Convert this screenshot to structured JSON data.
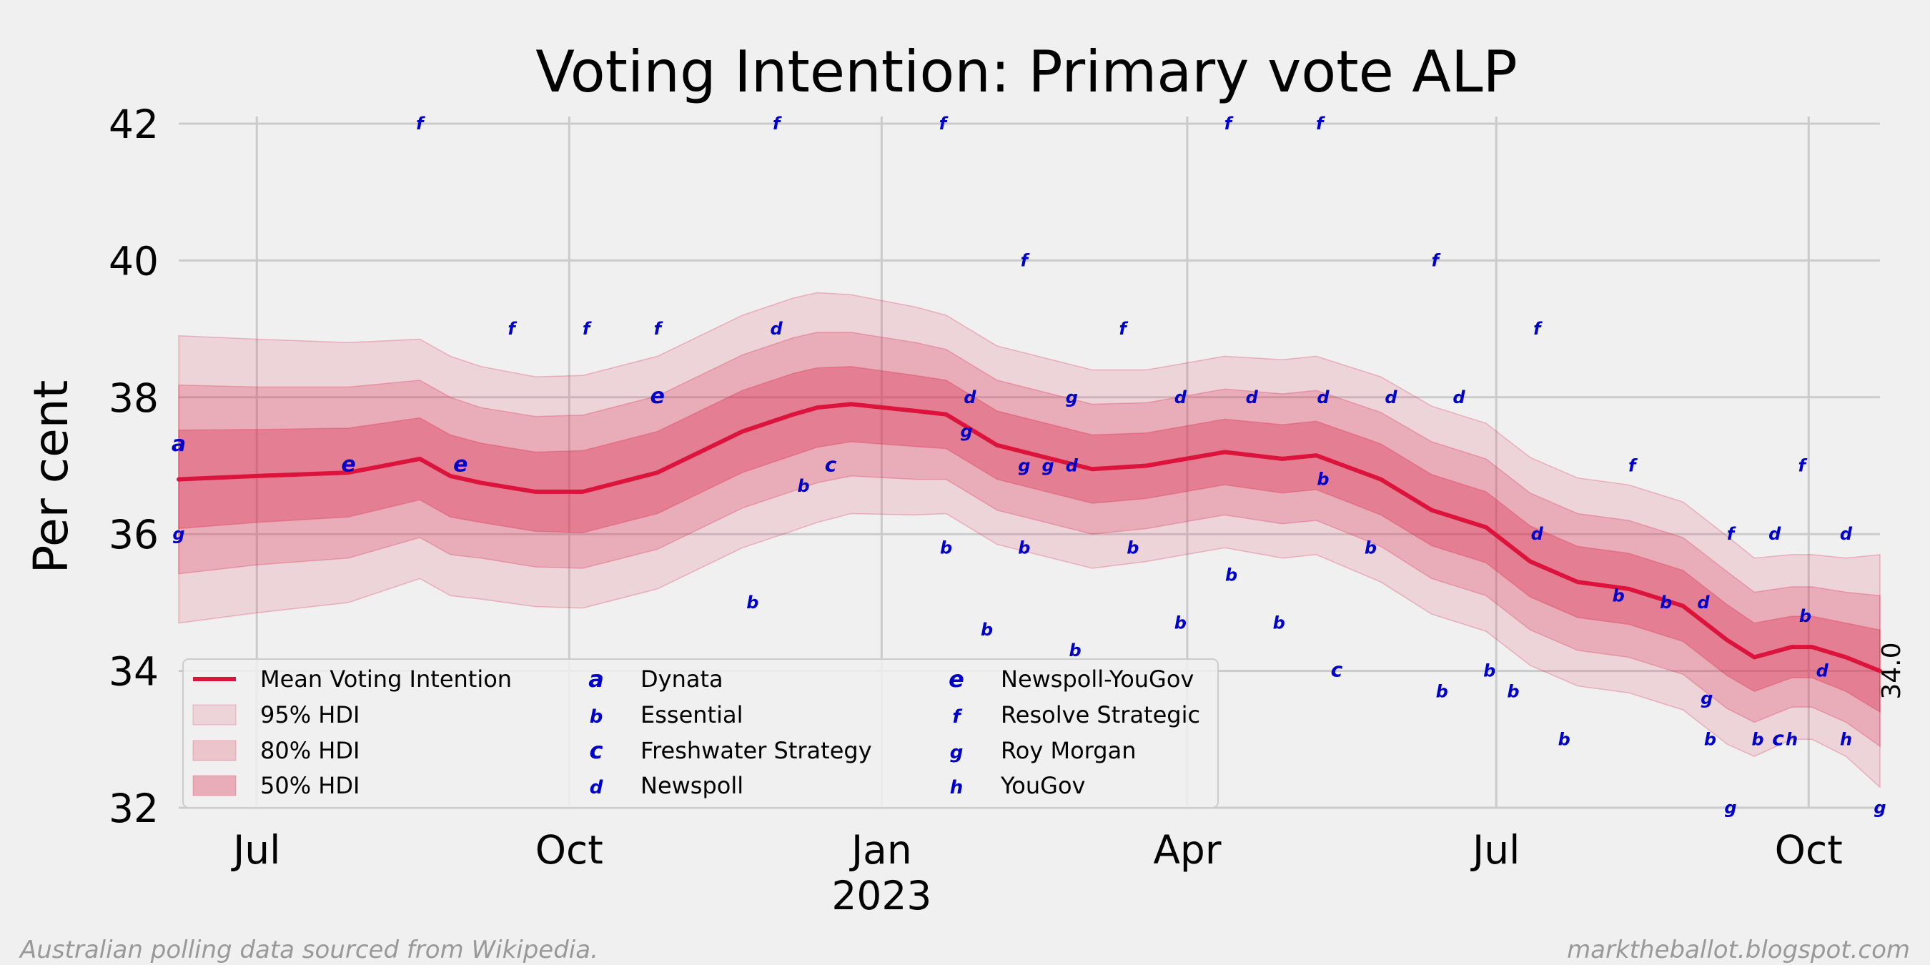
{
  "chart_data": {
    "type": "line",
    "title": "Voting Intention: Primary vote ALP",
    "xlabel": "",
    "ylabel": "Per cent",
    "ylim": [
      32,
      42
    ],
    "xlim": [
      "2022-06-08",
      "2023-10-22"
    ],
    "yticks": [
      "32",
      "34",
      "36",
      "38",
      "40",
      "42"
    ],
    "xticks": [
      {
        "date": "2022-07-01",
        "label": "Jul",
        "sub": ""
      },
      {
        "date": "2022-10-01",
        "label": "Oct",
        "sub": ""
      },
      {
        "date": "2023-01-01",
        "label": "Jan",
        "sub": "2023"
      },
      {
        "date": "2023-04-01",
        "label": "Apr",
        "sub": ""
      },
      {
        "date": "2023-07-01",
        "label": "Jul",
        "sub": ""
      },
      {
        "date": "2023-10-01",
        "label": "Oct",
        "sub": ""
      }
    ],
    "grid": true,
    "legend_position": "lower-left",
    "end_label": "34.0",
    "colors": {
      "mean": "#dc143c",
      "band": "#dc143c",
      "points": "#0000cc"
    },
    "legend": {
      "series": [
        {
          "label": "Mean Voting Intention",
          "kind": "line"
        },
        {
          "label": "95% HDI",
          "kind": "band95"
        },
        {
          "label": "80% HDI",
          "kind": "band80"
        },
        {
          "label": "50% HDI",
          "kind": "band50"
        }
      ],
      "pollsters": [
        {
          "code": "a",
          "name": "Dynata"
        },
        {
          "code": "b",
          "name": "Essential"
        },
        {
          "code": "c",
          "name": "Freshwater Strategy"
        },
        {
          "code": "d",
          "name": "Newspoll"
        },
        {
          "code": "e",
          "name": "Newspoll-YouGov"
        },
        {
          "code": "f",
          "name": "Resolve Strategic"
        },
        {
          "code": "g",
          "name": "Roy Morgan"
        },
        {
          "code": "h",
          "name": "YouGov"
        }
      ]
    },
    "series": [
      {
        "name": "Mean Voting Intention",
        "x": [
          "2022-06-08",
          "2022-07-01",
          "2022-07-28",
          "2022-08-18",
          "2022-08-27",
          "2022-09-05",
          "2022-09-21",
          "2022-10-05",
          "2022-10-27",
          "2022-11-21",
          "2022-12-06",
          "2022-12-13",
          "2022-12-23",
          "2023-01-11",
          "2023-01-20",
          "2023-02-04",
          "2023-03-04",
          "2023-03-20",
          "2023-04-12",
          "2023-04-29",
          "2023-05-09",
          "2023-05-28",
          "2023-06-12",
          "2023-06-28",
          "2023-07-11",
          "2023-07-25",
          "2023-08-09",
          "2023-08-25",
          "2023-09-07",
          "2023-09-15",
          "2023-09-26",
          "2023-10-02",
          "2023-10-12",
          "2023-10-22"
        ],
        "values": [
          36.8,
          36.85,
          36.9,
          37.1,
          36.85,
          36.75,
          36.62,
          36.62,
          36.9,
          37.5,
          37.75,
          37.85,
          37.9,
          37.8,
          37.75,
          37.3,
          36.95,
          37.0,
          37.2,
          37.1,
          37.15,
          36.8,
          36.35,
          36.1,
          35.6,
          35.3,
          35.2,
          34.95,
          34.45,
          34.2,
          34.35,
          34.35,
          34.2,
          34.0
        ]
      },
      {
        "name": "50% HDI",
        "halfwidth": [
          0.72,
          0.68,
          0.65,
          0.6,
          0.6,
          0.58,
          0.58,
          0.6,
          0.6,
          0.6,
          0.6,
          0.58,
          0.55,
          0.52,
          0.5,
          0.5,
          0.5,
          0.48,
          0.48,
          0.5,
          0.5,
          0.52,
          0.52,
          0.52,
          0.52,
          0.52,
          0.52,
          0.52,
          0.52,
          0.5,
          0.45,
          0.45,
          0.5,
          0.6
        ]
      },
      {
        "name": "80% HDI",
        "halfwidth": [
          1.38,
          1.3,
          1.25,
          1.15,
          1.15,
          1.1,
          1.1,
          1.12,
          1.12,
          1.12,
          1.12,
          1.1,
          1.05,
          1.0,
          0.95,
          0.95,
          0.95,
          0.92,
          0.92,
          0.95,
          0.95,
          0.98,
          1.0,
          1.0,
          1.0,
          1.0,
          1.0,
          1.0,
          1.0,
          0.95,
          0.88,
          0.88,
          0.95,
          1.1
        ]
      },
      {
        "name": "95% HDI",
        "halfwidth": [
          2.1,
          2.0,
          1.9,
          1.75,
          1.75,
          1.7,
          1.68,
          1.7,
          1.7,
          1.7,
          1.7,
          1.68,
          1.6,
          1.52,
          1.45,
          1.45,
          1.45,
          1.4,
          1.4,
          1.45,
          1.45,
          1.5,
          1.52,
          1.52,
          1.52,
          1.52,
          1.52,
          1.52,
          1.52,
          1.45,
          1.35,
          1.35,
          1.45,
          1.7
        ]
      }
    ],
    "polls": [
      {
        "date": "2022-06-08",
        "value": 37.3,
        "code": "a"
      },
      {
        "date": "2022-06-08",
        "value": 36.0,
        "code": "g"
      },
      {
        "date": "2022-07-28",
        "value": 37.0,
        "code": "e"
      },
      {
        "date": "2022-08-18",
        "value": 42.0,
        "code": "f"
      },
      {
        "date": "2022-08-30",
        "value": 37.0,
        "code": "e"
      },
      {
        "date": "2022-09-14",
        "value": 39.0,
        "code": "f"
      },
      {
        "date": "2022-10-06",
        "value": 39.0,
        "code": "f"
      },
      {
        "date": "2022-10-27",
        "value": 39.0,
        "code": "f"
      },
      {
        "date": "2022-10-27",
        "value": 38.0,
        "code": "e"
      },
      {
        "date": "2022-11-24",
        "value": 35.0,
        "code": "b"
      },
      {
        "date": "2022-12-01",
        "value": 42.0,
        "code": "f"
      },
      {
        "date": "2022-12-01",
        "value": 39.0,
        "code": "d"
      },
      {
        "date": "2022-12-09",
        "value": 36.7,
        "code": "b"
      },
      {
        "date": "2022-12-17",
        "value": 37.0,
        "code": "c"
      },
      {
        "date": "2023-01-19",
        "value": 42.0,
        "code": "f"
      },
      {
        "date": "2023-01-20",
        "value": 35.8,
        "code": "b"
      },
      {
        "date": "2023-01-26",
        "value": 37.5,
        "code": "g"
      },
      {
        "date": "2023-01-27",
        "value": 38.0,
        "code": "d"
      },
      {
        "date": "2023-02-01",
        "value": 34.6,
        "code": "b"
      },
      {
        "date": "2023-02-12",
        "value": 40.0,
        "code": "f"
      },
      {
        "date": "2023-02-12",
        "value": 37.0,
        "code": "g"
      },
      {
        "date": "2023-02-12",
        "value": 35.8,
        "code": "b"
      },
      {
        "date": "2023-02-19",
        "value": 37.0,
        "code": "g"
      },
      {
        "date": "2023-02-26",
        "value": 38.0,
        "code": "g"
      },
      {
        "date": "2023-02-26",
        "value": 37.0,
        "code": "d"
      },
      {
        "date": "2023-02-27",
        "value": 34.3,
        "code": "b"
      },
      {
        "date": "2023-03-13",
        "value": 39.0,
        "code": "f"
      },
      {
        "date": "2023-03-16",
        "value": 35.8,
        "code": "b"
      },
      {
        "date": "2023-03-30",
        "value": 38.0,
        "code": "d"
      },
      {
        "date": "2023-03-30",
        "value": 34.7,
        "code": "b"
      },
      {
        "date": "2023-04-13",
        "value": 42.0,
        "code": "f"
      },
      {
        "date": "2023-04-14",
        "value": 35.4,
        "code": "b"
      },
      {
        "date": "2023-04-20",
        "value": 38.0,
        "code": "d"
      },
      {
        "date": "2023-04-28",
        "value": 34.7,
        "code": "b"
      },
      {
        "date": "2023-05-10",
        "value": 42.0,
        "code": "f"
      },
      {
        "date": "2023-05-11",
        "value": 38.0,
        "code": "d"
      },
      {
        "date": "2023-05-11",
        "value": 36.8,
        "code": "b"
      },
      {
        "date": "2023-05-15",
        "value": 34.0,
        "code": "c"
      },
      {
        "date": "2023-05-25",
        "value": 35.8,
        "code": "b"
      },
      {
        "date": "2023-05-31",
        "value": 38.0,
        "code": "d"
      },
      {
        "date": "2023-06-13",
        "value": 40.0,
        "code": "f"
      },
      {
        "date": "2023-06-15",
        "value": 33.7,
        "code": "b"
      },
      {
        "date": "2023-06-20",
        "value": 38.0,
        "code": "d"
      },
      {
        "date": "2023-06-29",
        "value": 34.0,
        "code": "b"
      },
      {
        "date": "2023-07-06",
        "value": 33.7,
        "code": "b"
      },
      {
        "date": "2023-07-13",
        "value": 39.0,
        "code": "f"
      },
      {
        "date": "2023-07-13",
        "value": 36.0,
        "code": "d"
      },
      {
        "date": "2023-07-21",
        "value": 33.0,
        "code": "b"
      },
      {
        "date": "2023-08-10",
        "value": 37.0,
        "code": "f"
      },
      {
        "date": "2023-08-06",
        "value": 35.1,
        "code": "b"
      },
      {
        "date": "2023-08-20",
        "value": 35.0,
        "code": "b"
      },
      {
        "date": "2023-08-31",
        "value": 35.0,
        "code": "d"
      },
      {
        "date": "2023-09-01",
        "value": 33.6,
        "code": "g"
      },
      {
        "date": "2023-09-02",
        "value": 33.0,
        "code": "b"
      },
      {
        "date": "2023-09-08",
        "value": 36.0,
        "code": "f"
      },
      {
        "date": "2023-09-08",
        "value": 32.0,
        "code": "g"
      },
      {
        "date": "2023-09-16",
        "value": 33.0,
        "code": "b"
      },
      {
        "date": "2023-09-21",
        "value": 36.0,
        "code": "d"
      },
      {
        "date": "2023-09-22",
        "value": 33.0,
        "code": "c"
      },
      {
        "date": "2023-09-26",
        "value": 33.0,
        "code": "h"
      },
      {
        "date": "2023-09-29",
        "value": 37.0,
        "code": "f"
      },
      {
        "date": "2023-09-30",
        "value": 34.8,
        "code": "b"
      },
      {
        "date": "2023-10-05",
        "value": 34.0,
        "code": "d"
      },
      {
        "date": "2023-10-12",
        "value": 36.0,
        "code": "d"
      },
      {
        "date": "2023-10-12",
        "value": 33.0,
        "code": "h"
      },
      {
        "date": "2023-10-22",
        "value": 32.0,
        "code": "g"
      }
    ]
  },
  "footer": {
    "left": "Australian polling data sourced from Wikipedia.",
    "right": "marktheballot.blogspot.com"
  }
}
